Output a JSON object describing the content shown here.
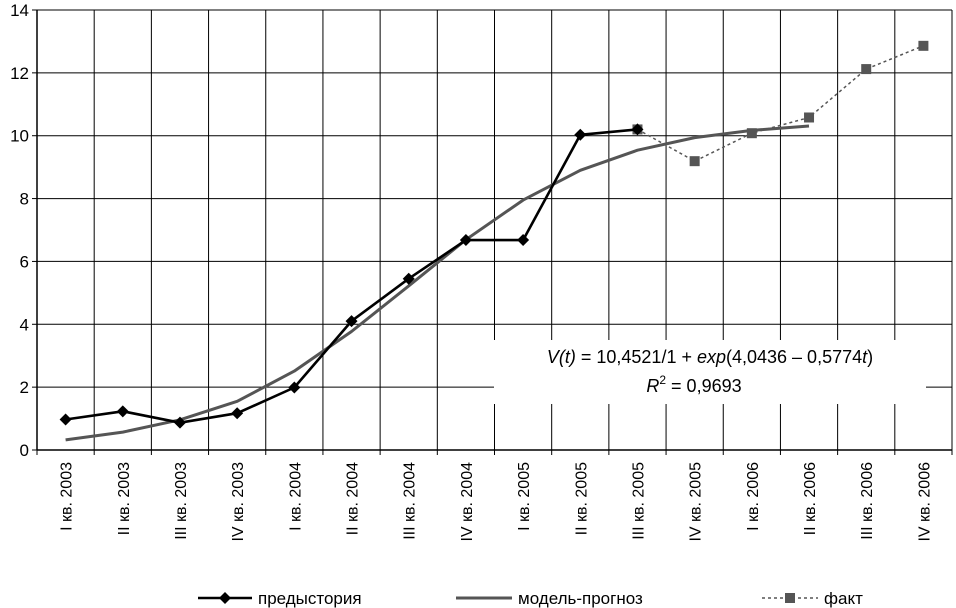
{
  "chart_data": {
    "type": "line",
    "categories": [
      "I кв. 2003",
      "II кв. 2003",
      "III кв. 2003",
      "IV кв. 2003",
      "I кв. 2004",
      "II кв. 2004",
      "III кв. 2004",
      "IV кв. 2004",
      "I кв. 2005",
      "II кв. 2005",
      "III кв. 2005",
      "IV кв. 2005",
      "I кв. 2006",
      "II кв. 2006",
      "III кв. 2006",
      "IV кв. 2006"
    ],
    "ylim": [
      0,
      14
    ],
    "yticks": [
      0,
      2,
      4,
      6,
      8,
      10,
      12,
      14
    ],
    "grid": true,
    "legend_position": "bottom",
    "series": [
      {
        "name": "предыстория",
        "color": "#000000",
        "marker": "diamond",
        "style": "solid",
        "values": [
          0.97,
          1.23,
          0.87,
          1.17,
          1.99,
          4.1,
          5.45,
          6.68,
          6.68,
          10.03,
          10.2,
          null,
          null,
          null,
          null,
          null
        ]
      },
      {
        "name": "модель-прогноз",
        "color": "#555555",
        "marker": "none",
        "style": "solid",
        "values": [
          0.32,
          0.57,
          0.96,
          1.55,
          2.51,
          3.77,
          5.22,
          6.69,
          7.95,
          8.9,
          9.54,
          9.94,
          10.17,
          10.31,
          null,
          null
        ]
      },
      {
        "name": "факт",
        "color": "#555555",
        "marker": "square",
        "style": "dashed",
        "values": [
          null,
          null,
          null,
          null,
          null,
          null,
          null,
          null,
          null,
          null,
          10.2,
          9.19,
          10.08,
          10.58,
          12.12,
          12.86
        ]
      }
    ],
    "annotation": {
      "line1": {
        "vt": "V(t)",
        "eq": " = 10,4521/1 + ",
        "exp": "exp",
        "arg": "(4,0436 – 0,5774",
        "t": "t",
        "close": ")"
      },
      "line2": {
        "r": "R",
        "sup": "2",
        "val": " = 0,9693"
      }
    }
  }
}
